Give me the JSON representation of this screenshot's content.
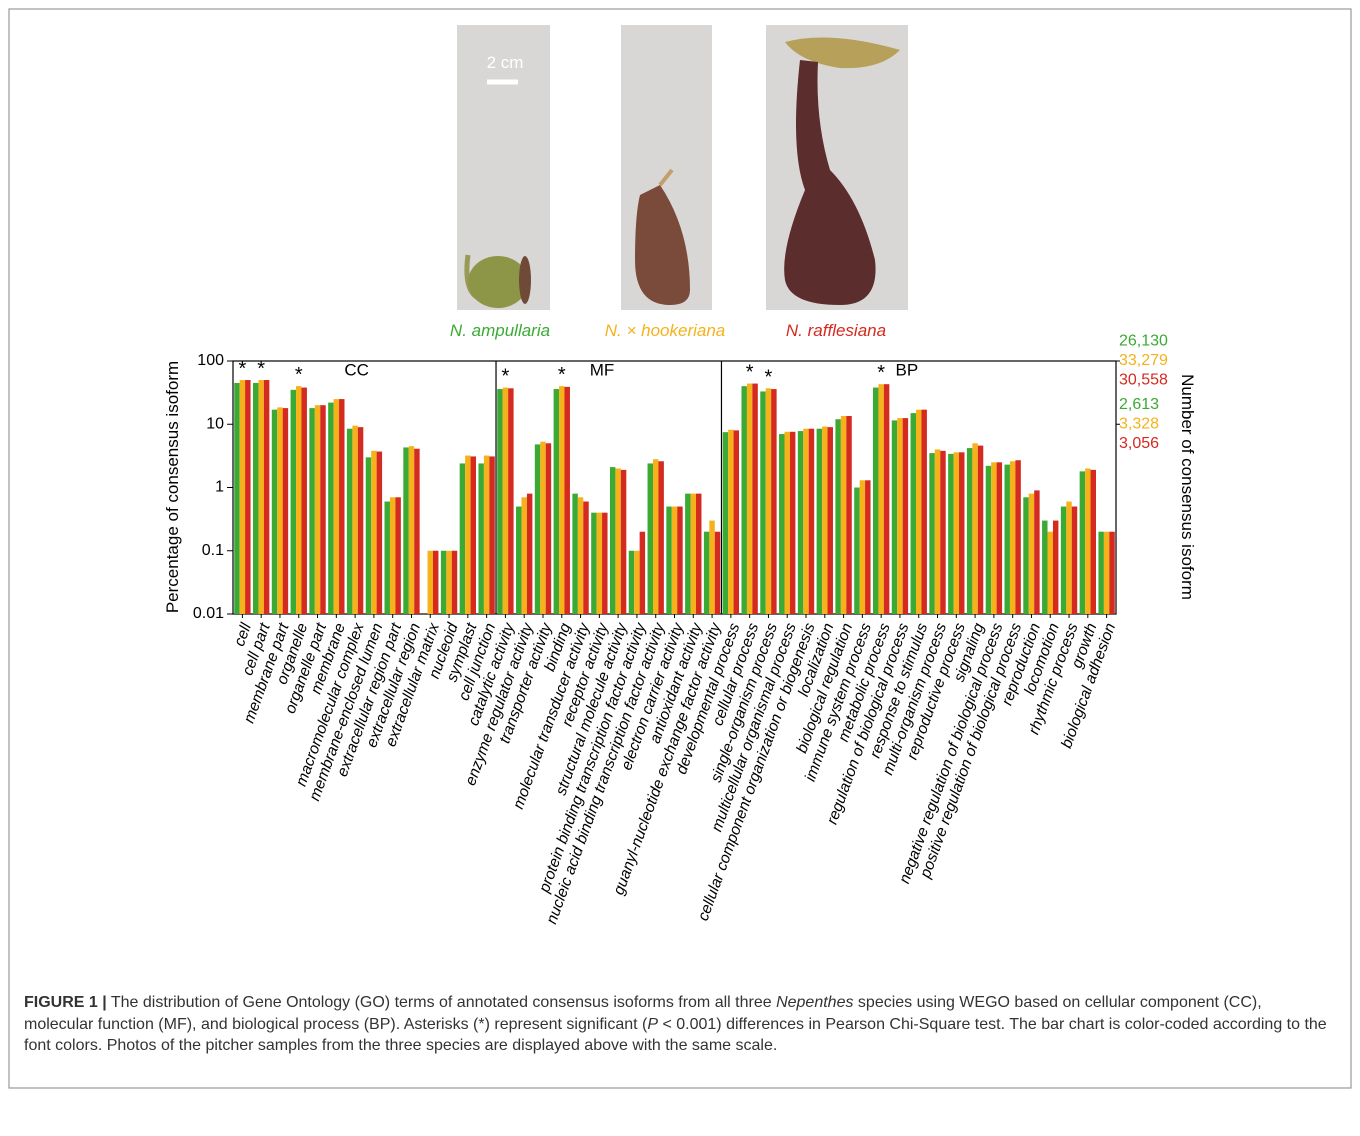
{
  "chart_data": {
    "type": "bar",
    "scale_bar_label": "2 cm",
    "ylabel": "Percentage of consensus isoform",
    "y2label": "Number of consensus isoform",
    "log_scale": true,
    "ylim": [
      0.01,
      100
    ],
    "yticks": [
      0.01,
      0.1,
      1,
      10,
      100
    ],
    "categories": [
      "cell",
      "cell part",
      "membrane part",
      "organelle",
      "organelle part",
      "membrane",
      "macromolecular complex",
      "membrane-enclosed lumen",
      "extracellular region part",
      "extracellular region",
      "extracellular matrix",
      "nucleoid",
      "symplast",
      "cell junction",
      "catalytic activity",
      "enzyme regulator activity",
      "transporter activity",
      "binding",
      "molecular transducer activity",
      "receptor activity",
      "structural molecule activity",
      "protein binding transcription factor activity",
      "nucleic acid binding transcription factor activity",
      "electron carrier activity",
      "antioxidant activity",
      "guanyl-nucleotide exchange factor activity",
      "developmental process",
      "cellular process",
      "single-organism process",
      "multicellular organismal process",
      "cellular component organization or biogenesis",
      "localization",
      "biological regulation",
      "immune system process",
      "metabolic process",
      "regulation of biological process",
      "response to stimulus",
      "multi-organism process",
      "reproductive process",
      "signaling",
      "negative regulation of biological process",
      "positive regulation of biological process",
      "reproduction",
      "locomotion",
      "rhythmic process",
      "growth",
      "biological adhesion"
    ],
    "category_groups": [
      "CC",
      "CC",
      "CC",
      "CC",
      "CC",
      "CC",
      "CC",
      "CC",
      "CC",
      "CC",
      "CC",
      "CC",
      "CC",
      "CC",
      "MF",
      "MF",
      "MF",
      "MF",
      "MF",
      "MF",
      "MF",
      "MF",
      "MF",
      "MF",
      "MF",
      "MF",
      "BP",
      "BP",
      "BP",
      "BP",
      "BP",
      "BP",
      "BP",
      "BP",
      "BP",
      "BP",
      "BP",
      "BP",
      "BP",
      "BP",
      "BP",
      "BP",
      "BP",
      "BP",
      "BP",
      "BP",
      "BP"
    ],
    "significance_labels": [
      "*",
      "*",
      null,
      "*",
      null,
      null,
      null,
      null,
      null,
      null,
      null,
      null,
      null,
      null,
      "*",
      null,
      null,
      "*",
      null,
      null,
      null,
      null,
      null,
      null,
      null,
      null,
      null,
      "*",
      "*",
      null,
      null,
      null,
      null,
      null,
      "*",
      null,
      null,
      null,
      null,
      null,
      null,
      null,
      null,
      null,
      null,
      null,
      null
    ],
    "series": [
      {
        "name": "N. ampullaria",
        "color": "#3aaa35",
        "y2lim": [
          2.613,
          26130
        ],
        "y2ticks": [
          {
            "value": 2613,
            "label": "2,613"
          },
          {
            "value": 26130,
            "label": "26,130"
          }
        ],
        "values": [
          45,
          45,
          17,
          35,
          18,
          22,
          8.5,
          3,
          0.6,
          4.3,
          null,
          0.1,
          2.4,
          2.4,
          36,
          0.5,
          4.8,
          36,
          0.8,
          0.4,
          2.1,
          0.1,
          2.4,
          0.5,
          0.8,
          0.2,
          7.5,
          40,
          33,
          7,
          7.8,
          8.5,
          12,
          1,
          38,
          11.5,
          15,
          3.5,
          3.4,
          4.2,
          2.2,
          2.3,
          0.7,
          0.3,
          0.5,
          1.8,
          0.2
        ]
      },
      {
        "name": "N. × hookeriana",
        "color": "#f5b21b",
        "y2lim": [
          3.3279,
          33279
        ],
        "y2ticks": [
          {
            "value": 3328,
            "label": "3,328"
          },
          {
            "value": 33279,
            "label": "33,279"
          }
        ],
        "values": [
          50,
          50,
          18.5,
          40,
          20,
          25,
          9.5,
          3.8,
          0.7,
          4.5,
          0.1,
          0.1,
          3.2,
          3.2,
          38,
          0.7,
          5.3,
          40,
          0.7,
          0.4,
          2,
          0.1,
          2.8,
          0.5,
          0.8,
          0.3,
          8.2,
          44,
          37,
          7.6,
          8.5,
          9.2,
          13.5,
          1.3,
          43,
          12.5,
          17,
          4,
          3.6,
          5,
          2.5,
          2.6,
          0.8,
          0.2,
          0.6,
          2,
          0.2
        ]
      },
      {
        "name": "N. rafflesiana",
        "color": "#d42a20",
        "y2lim": [
          3.0558,
          30558
        ],
        "y2ticks": [
          {
            "value": 3056,
            "label": "3,056"
          },
          {
            "value": 30558,
            "label": "30,558"
          }
        ],
        "values": [
          50,
          50,
          18,
          38,
          20,
          25,
          9,
          3.7,
          0.7,
          4.1,
          0.1,
          0.1,
          3.1,
          3.1,
          37,
          0.8,
          5,
          39,
          0.6,
          0.4,
          1.9,
          0.2,
          2.6,
          0.5,
          0.8,
          0.2,
          8,
          44,
          36,
          7.6,
          8.5,
          9,
          13.5,
          1.3,
          43,
          12.5,
          17,
          3.8,
          3.6,
          4.6,
          2.5,
          2.7,
          0.9,
          0.3,
          0.5,
          1.9,
          0.2
        ]
      }
    ],
    "caption": [
      "FIGURE 1 |",
      " The distribution of Gene Ontology (GO) terms of annotated consensus isoforms from all three ",
      "Nepenthes",
      " species using WEGO based on cellular component (CC), molecular function (MF), and biological process (BP). Asterisks (*) represent significant (",
      "P",
      " < 0.001) differences in Pearson Chi-Square test. The bar chart is color-coded according to the font colors. Photos of the pitcher samples from the three species are displayed above with the same scale."
    ]
  }
}
